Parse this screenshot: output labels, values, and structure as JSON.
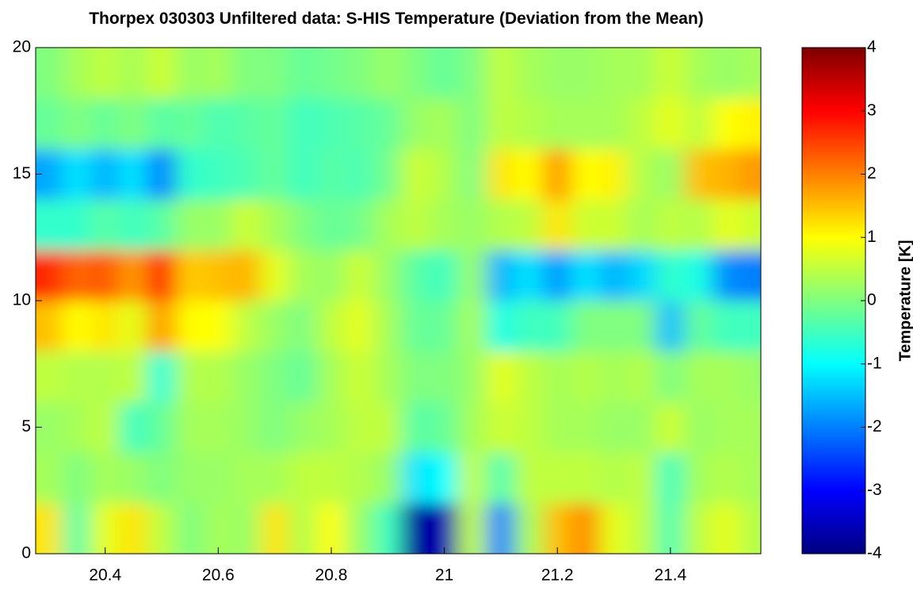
{
  "chart_data": {
    "type": "heatmap",
    "title": "Thorpex 030303 Unfiltered data: S-HIS Temperature (Deviation from the Mean)",
    "colorbar_label": "Temperature [K]",
    "colormap": "jet",
    "x": [
      20.3,
      20.35,
      20.4,
      20.45,
      20.5,
      20.55,
      20.6,
      20.65,
      20.7,
      20.75,
      20.8,
      20.85,
      20.9,
      20.95,
      21.0,
      21.05,
      21.1,
      21.15,
      21.2,
      21.25,
      21.3,
      21.35,
      21.4,
      21.45,
      21.5,
      21.55
    ],
    "y": [
      1,
      3,
      5,
      7,
      9,
      11,
      13,
      15,
      17,
      19
    ],
    "values": [
      [
        1.2,
        -0.3,
        0.8,
        1.2,
        0.5,
        0,
        0.3,
        0.2,
        1.2,
        0.4,
        1.0,
        0.2,
        -0.5,
        -3.8,
        -3.6,
        0.5,
        -2.0,
        0.3,
        1.5,
        1.9,
        0.8,
        0.5,
        -0.4,
        0.5,
        0.8,
        0.4
      ],
      [
        0.3,
        0,
        0.3,
        0.2,
        0,
        0.2,
        0.2,
        0.3,
        0.3,
        0.5,
        0.5,
        0.4,
        0.2,
        -1.2,
        -1.0,
        0.5,
        -0.4,
        0.5,
        0.5,
        0.5,
        0.4,
        0.5,
        -0.5,
        0.3,
        0.4,
        0.3
      ],
      [
        0.2,
        0.3,
        0.5,
        -0.5,
        -0.2,
        0.3,
        0.3,
        0.2,
        0,
        0.2,
        0.3,
        0.5,
        0.5,
        -0.3,
        -0.2,
        0.3,
        0.6,
        0.5,
        0.3,
        0.3,
        0.2,
        0.2,
        0.6,
        0.2,
        0.3,
        0.3
      ],
      [
        0.5,
        0.4,
        0.4,
        0.5,
        -0.7,
        0.4,
        0.4,
        0.2,
        0,
        -0.2,
        0.3,
        0.6,
        0.3,
        0,
        0,
        0.2,
        0.8,
        0.5,
        0.3,
        0.4,
        0.3,
        0.4,
        0,
        0.3,
        0.3,
        0.2
      ],
      [
        1.5,
        1.0,
        1.2,
        0.8,
        1.8,
        1.0,
        1.0,
        0.5,
        0.2,
        0,
        0.5,
        0.8,
        0.3,
        -0.2,
        -0.2,
        0.3,
        -0.8,
        -0.5,
        -0.5,
        0,
        0,
        0,
        -1.5,
        -0.2,
        -0.5,
        -0.5
      ],
      [
        2.7,
        2.2,
        2.3,
        1.8,
        2.8,
        1.4,
        1.5,
        1.6,
        0.8,
        0.3,
        0.2,
        0.6,
        0.2,
        -0.3,
        -0.5,
        0.2,
        -1.6,
        -1.2,
        -1.8,
        -1.2,
        -1.6,
        -1.3,
        -0.6,
        -0.8,
        -1.9,
        -2.0
      ],
      [
        -0.6,
        -0.6,
        -0.3,
        -0.5,
        -0.3,
        0.2,
        0.2,
        0.6,
        0.3,
        0,
        -0.2,
        -0.1,
        0.3,
        0.5,
        0.3,
        0.2,
        0.4,
        0.5,
        1.2,
        0.6,
        0.6,
        0.3,
        0.5,
        0.4,
        0.8,
        0.6
      ],
      [
        -1.7,
        -1.2,
        -1.6,
        -1.2,
        -2.0,
        -0.6,
        -0.5,
        -0.4,
        -0.2,
        -0.5,
        -0.3,
        -0.4,
        -0.1,
        0.6,
        0.4,
        0,
        1.2,
        1.0,
        1.8,
        1.0,
        1.1,
        0.4,
        0.2,
        1.5,
        1.6,
        1.8
      ],
      [
        -0.2,
        0,
        -0.2,
        0,
        -0.3,
        -0.2,
        -0.4,
        -0.3,
        -0.2,
        -0.5,
        -0.4,
        -0.3,
        -0.2,
        0.2,
        0.3,
        0,
        0.5,
        0.4,
        0.3,
        0.3,
        0.3,
        0.5,
        0.8,
        0.5,
        1.0,
        1.1
      ],
      [
        0,
        0.3,
        0.5,
        0.3,
        0.6,
        0.2,
        0.3,
        0,
        0,
        -0.2,
        -0.1,
        0,
        0.2,
        0,
        -0.2,
        0,
        0.5,
        0.3,
        0.2,
        0.2,
        0.3,
        0.3,
        0.6,
        0.3,
        0.2,
        0.3
      ]
    ],
    "xlim": [
      20.277,
      21.56
    ],
    "ylim": [
      0,
      20
    ],
    "xticks": [
      20.4,
      20.6,
      20.8,
      21,
      21.2,
      21.4
    ],
    "yticks": [
      0,
      5,
      10,
      15,
      20
    ],
    "clim": [
      -4,
      4
    ],
    "cticks": [
      -4,
      -3,
      -2,
      -1,
      0,
      1,
      2,
      3,
      4
    ]
  }
}
